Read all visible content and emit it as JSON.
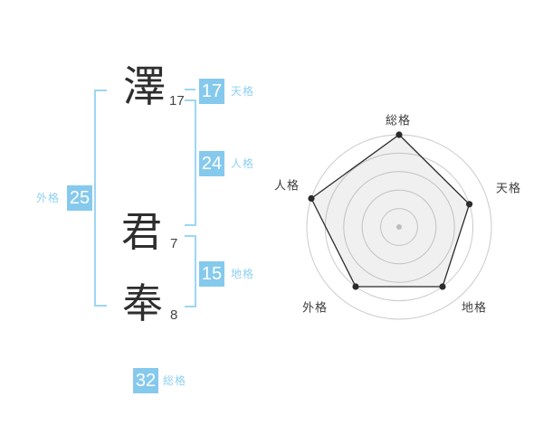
{
  "colors": {
    "accent_blue": "#85C9ED",
    "bracket_blue": "#9CD6F3",
    "label_blue": "#8FD0F2",
    "kanji_ink": "#2e2e2e",
    "chart_line": "#2b2b2b",
    "grid_gray": "#cbcbcb",
    "background": "#ffffff"
  },
  "name_breakdown": {
    "characters": [
      {
        "char": "澤",
        "strokes": "17"
      },
      {
        "char": "君",
        "strokes": "7"
      },
      {
        "char": "奉",
        "strokes": "8"
      }
    ],
    "badges": {
      "tenkaku": {
        "value": "17",
        "label": "天格"
      },
      "jinkaku": {
        "value": "24",
        "label": "人格"
      },
      "gaikaku": {
        "value": "25",
        "label": "外格"
      },
      "chikaku": {
        "value": "15",
        "label": "地格"
      },
      "soukaku": {
        "value": "32",
        "label": "総格"
      }
    }
  },
  "chart_data": {
    "type": "radar",
    "categories": [
      "総格",
      "天格",
      "地格",
      "外格",
      "人格"
    ],
    "values": [
      5,
      4,
      4,
      4,
      5
    ],
    "max": 5,
    "levels": 5,
    "grid": "concentric-circles",
    "legend": "none",
    "title": ""
  }
}
